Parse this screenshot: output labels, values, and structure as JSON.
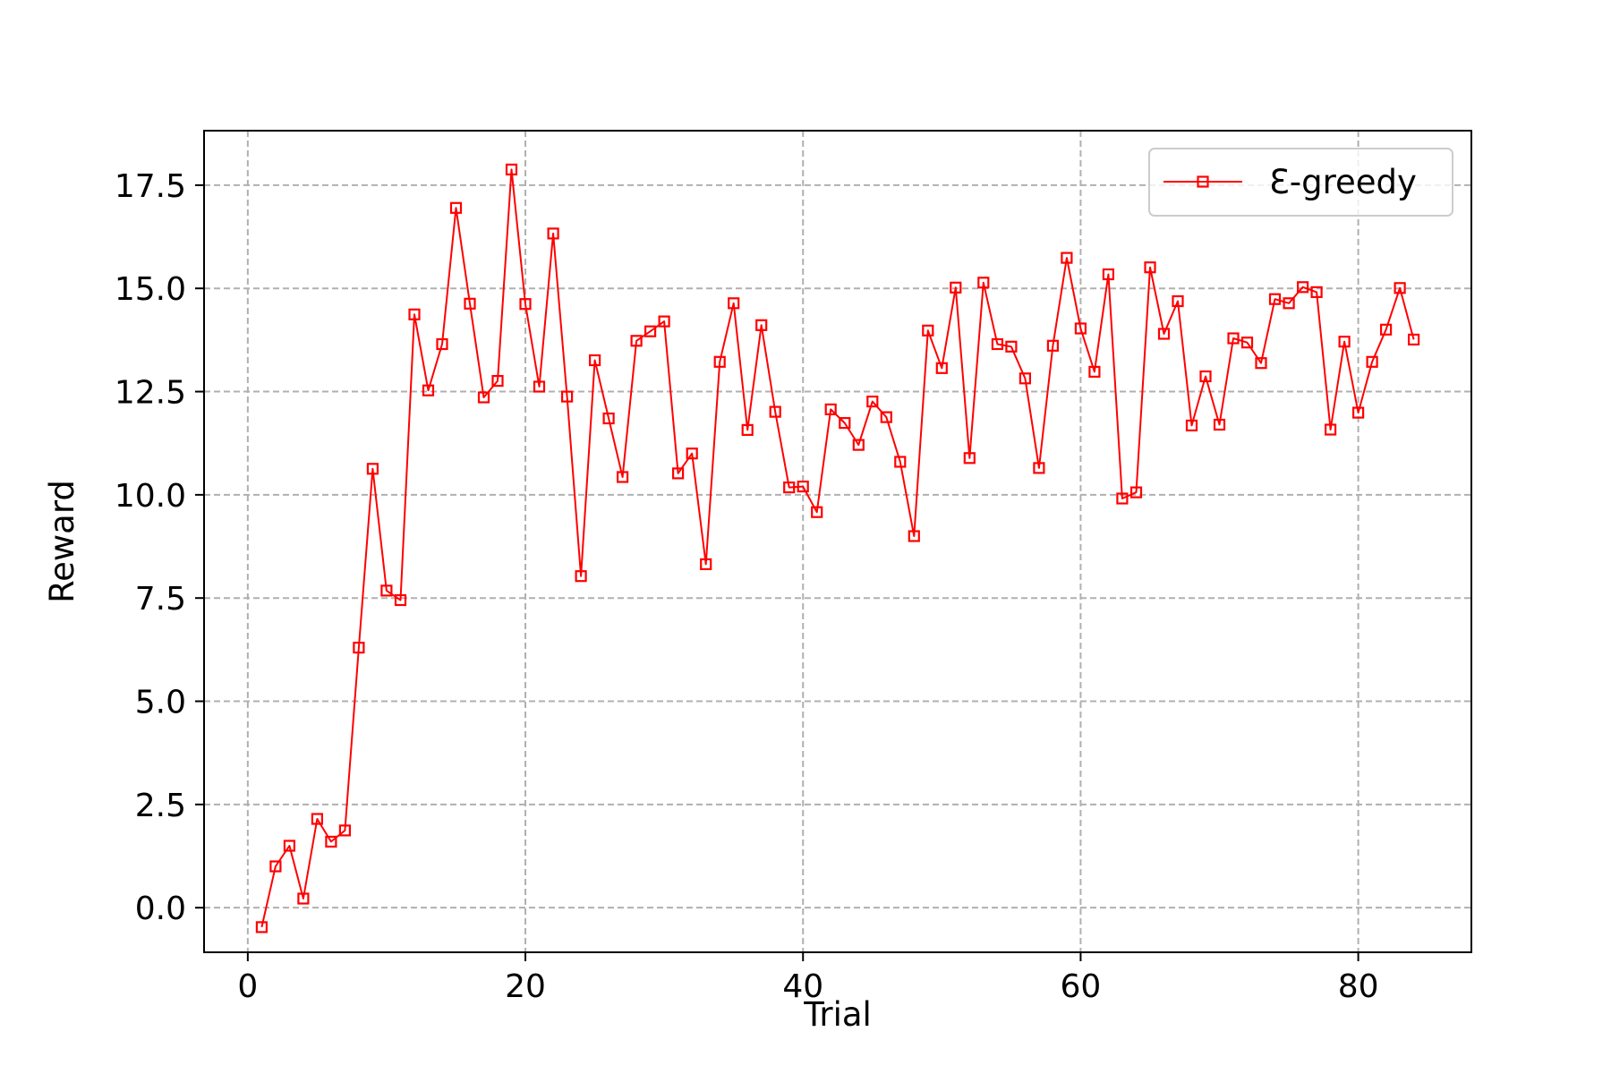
{
  "chart_data": {
    "type": "line",
    "title": "",
    "xlabel": "Trial",
    "ylabel": "Reward",
    "xlim": [
      -3.15,
      88.15
    ],
    "ylim": [
      -1.08,
      18.82
    ],
    "xticks": [
      0,
      20,
      40,
      60,
      80
    ],
    "yticks": [
      0.0,
      2.5,
      5.0,
      7.5,
      10.0,
      12.5,
      15.0,
      17.5
    ],
    "grid": true,
    "grid_style": "dashed",
    "legend_position": "top-right",
    "series": [
      {
        "name": "Ɛ-greedy",
        "color": "#ff0000",
        "marker": "square-open",
        "x": [
          1,
          2,
          3,
          4,
          5,
          6,
          7,
          8,
          9,
          10,
          11,
          12,
          13,
          14,
          15,
          16,
          17,
          18,
          19,
          20,
          21,
          22,
          23,
          24,
          25,
          26,
          27,
          28,
          29,
          30,
          31,
          32,
          33,
          34,
          35,
          36,
          37,
          38,
          39,
          40,
          41,
          42,
          43,
          44,
          45,
          46,
          47,
          48,
          49,
          50,
          51,
          52,
          53,
          54,
          55,
          56,
          57,
          58,
          59,
          60,
          61,
          62,
          63,
          64,
          65,
          66,
          67,
          68,
          69,
          70,
          71,
          72,
          73,
          74,
          75,
          76,
          77,
          78,
          79,
          80,
          81,
          82,
          83,
          84
        ],
        "y": [
          -0.47,
          1.0,
          1.5,
          0.22,
          2.15,
          1.6,
          1.87,
          6.3,
          10.63,
          7.68,
          7.45,
          14.37,
          12.53,
          13.65,
          16.95,
          14.63,
          12.36,
          12.76,
          17.88,
          14.62,
          12.62,
          16.33,
          12.38,
          8.03,
          13.26,
          11.85,
          10.43,
          13.73,
          13.96,
          14.2,
          10.52,
          11.0,
          8.32,
          13.22,
          14.64,
          11.57,
          14.11,
          12.01,
          10.18,
          10.2,
          9.58,
          12.07,
          11.74,
          11.21,
          12.26,
          11.88,
          10.8,
          9.0,
          13.98,
          13.07,
          15.02,
          10.89,
          15.14,
          13.65,
          13.59,
          12.82,
          10.65,
          13.61,
          15.74,
          14.03,
          12.98,
          15.34,
          9.91,
          10.06,
          15.51,
          13.9,
          14.69,
          11.68,
          12.87,
          11.7,
          13.79,
          13.69,
          13.19,
          14.74,
          14.64,
          15.03,
          14.91,
          11.58,
          13.71,
          11.99,
          13.22,
          14.0,
          15.01,
          13.76
        ]
      }
    ]
  }
}
